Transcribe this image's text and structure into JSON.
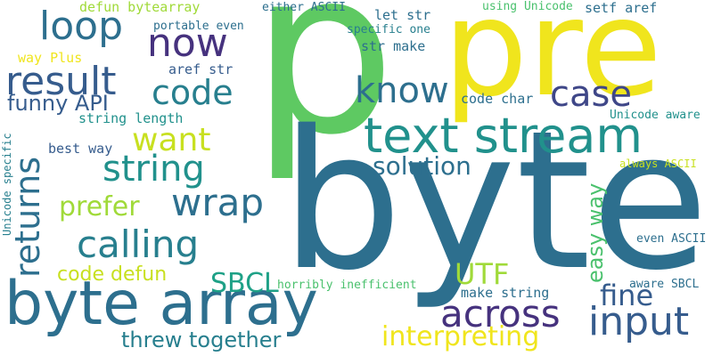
{
  "palette": {
    "background": "#ffffff",
    "dark_purple": "#46327e",
    "indigo": "#3f4788",
    "blue": "#365c8d",
    "steel_blue": "#2d6f8e",
    "teal": "#277f8e",
    "green_teal": "#21918c",
    "sea_green": "#1fa187",
    "green": "#4ac16d",
    "bright_green": "#5ec962",
    "lime": "#a0da39",
    "yellow_green": "#c8e020",
    "yellow": "#f0e51d"
  },
  "words": {
    "w01": "p",
    "w02": "pre",
    "w03": "byte",
    "w04": "byte array",
    "w05": "text stream",
    "w06": "loop",
    "w07": "now",
    "w08": "result",
    "w09": "code",
    "w10": "know",
    "w11": "case",
    "w12": "funny API",
    "w13": "want",
    "w14": "string",
    "w15": "returns",
    "w16": "wrap",
    "w17": "solution",
    "w18": "prefer",
    "w19": "calling",
    "w20": "easy way",
    "w21": "UTF",
    "w22": "code defun",
    "w23": "SBCL",
    "w24": "across",
    "w25": "fine",
    "w26": "input",
    "w27": "threw together",
    "w28": "interpreting",
    "w29": "defun bytearray",
    "w30": "either ASCII",
    "w31": "using Unicode",
    "w32": "portable even",
    "w33": "let str",
    "w34": "setf aref",
    "w35": "specific one",
    "w36": "str make",
    "w37": "way Plus",
    "w38": "aref str",
    "w39": "code char",
    "w40": "Unicode aware",
    "w41": "string length",
    "w42": "best way",
    "w43": "Unicode specific",
    "w44": "always ASCII",
    "w45": "even ASCII",
    "w46": "horribly inefficient",
    "w47": "aware SBCL",
    "w48": "make string"
  }
}
